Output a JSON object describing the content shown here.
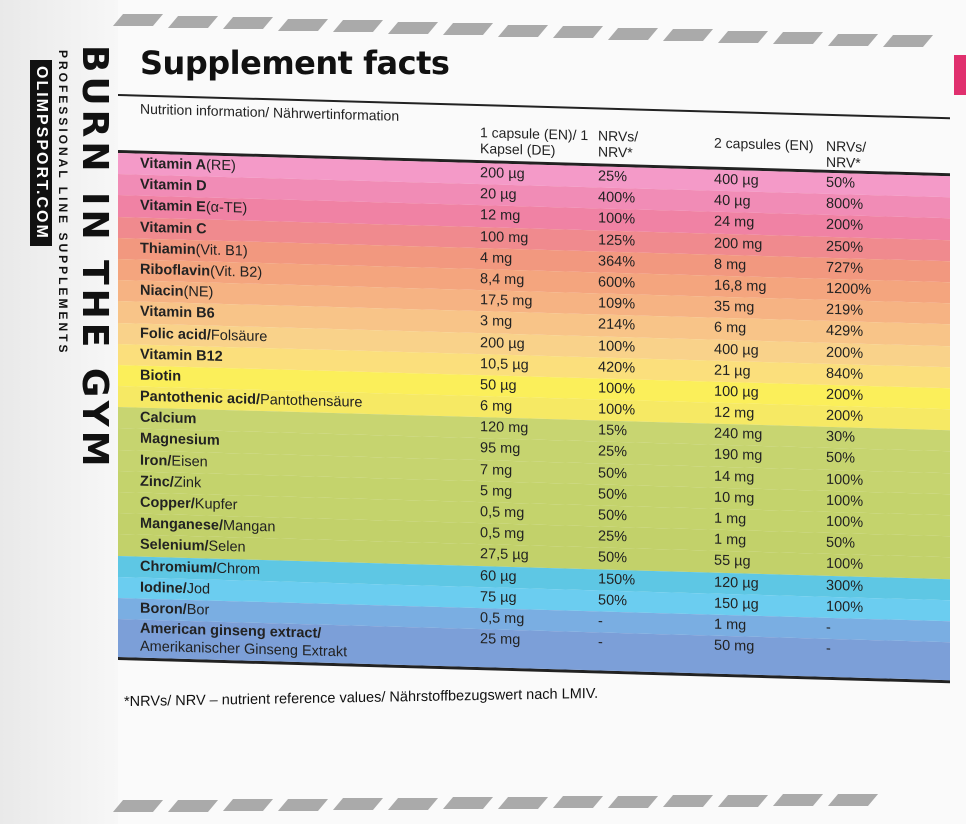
{
  "side_panel": {
    "brand": "BURN IN THE GYM",
    "tagline": "PROFESSIONAL LINE SUPPLEMENTS",
    "website": "OLIMPSPORT.COM"
  },
  "title": "Supplement facts",
  "header": {
    "col0": "Nutrition information/ Nährwertinformation",
    "col1": "1 capsule (EN)/ 1 Kapsel (DE)",
    "col2": "NRVs/ NRV*",
    "col3": "2 capsules (EN)",
    "col4": "NRVs/ NRV*"
  },
  "rows": [
    {
      "name": "Vitamin A",
      "sub": " (RE)",
      "v1": "200 µg",
      "n1": "25%",
      "v2": "400 µg",
      "n2": "50%",
      "color": "#f49ac8"
    },
    {
      "name": "Vitamin D",
      "sub": "",
      "v1": "20 µg",
      "n1": "400%",
      "v2": "40 µg",
      "n2": "800%",
      "color": "#f18cb6"
    },
    {
      "name": "Vitamin E",
      "sub": " (α-TE)",
      "v1": "12 mg",
      "n1": "100%",
      "v2": "24 mg",
      "n2": "200%",
      "color": "#f082a4"
    },
    {
      "name": "Vitamin C",
      "sub": "",
      "v1": "100 mg",
      "n1": "125%",
      "v2": "200 mg",
      "n2": "250%",
      "color": "#f08a8e"
    },
    {
      "name": "Thiamin",
      "sub": " (Vit. B1)",
      "v1": "4 mg",
      "n1": "364%",
      "v2": "8 mg",
      "n2": "727%",
      "color": "#f2987f"
    },
    {
      "name": "Riboflavin",
      "sub": " (Vit. B2)",
      "v1": "8,4 mg",
      "n1": "600%",
      "v2": "16,8 mg",
      "n2": "1200%",
      "color": "#f4a57e"
    },
    {
      "name": "Niacin",
      "sub": " (NE)",
      "v1": "17,5 mg",
      "n1": "109%",
      "v2": "35 mg",
      "n2": "219%",
      "color": "#f6b383"
    },
    {
      "name": "Vitamin B6",
      "sub": "",
      "v1": "3 mg",
      "n1": "214%",
      "v2": "6 mg",
      "n2": "429%",
      "color": "#f8c488"
    },
    {
      "name": "Folic acid/",
      "sub": " Folsäure",
      "v1": "200 µg",
      "n1": "100%",
      "v2": "400 µg",
      "n2": "200%",
      "color": "#f9d28a"
    },
    {
      "name": "Vitamin B12",
      "sub": "",
      "v1": "10,5 µg",
      "n1": "420%",
      "v2": "21 µg",
      "n2": "840%",
      "color": "#fbdf7c"
    },
    {
      "name": "Biotin",
      "sub": "",
      "v1": "50 µg",
      "n1": "100%",
      "v2": "100 µg",
      "n2": "200%",
      "color": "#fbef5a"
    },
    {
      "name": "Pantothenic acid/",
      "sub": " Pantothensäure",
      "v1": "6 mg",
      "n1": "100%",
      "v2": "12 mg",
      "n2": "200%",
      "color": "#f6e964"
    },
    {
      "name": "Calcium",
      "sub": "",
      "v1": "120 mg",
      "n1": "15%",
      "v2": "240 mg",
      "n2": "30%",
      "color": "#c8d571"
    },
    {
      "name": "Magnesium",
      "sub": "",
      "v1": "95 mg",
      "n1": "25%",
      "v2": "190 mg",
      "n2": "50%",
      "color": "#c6d46f"
    },
    {
      "name": "Iron/",
      "sub": " Eisen",
      "v1": "7 mg",
      "n1": "50%",
      "v2": "14 mg",
      "n2": "100%",
      "color": "#c6d46f"
    },
    {
      "name": "Zinc/",
      "sub": " Zink",
      "v1": "5 mg",
      "n1": "50%",
      "v2": "10 mg",
      "n2": "100%",
      "color": "#c4d36c"
    },
    {
      "name": "Copper/",
      "sub": " Kupfer",
      "v1": "0,5 mg",
      "n1": "50%",
      "v2": "1 mg",
      "n2": "100%",
      "color": "#c4d36c"
    },
    {
      "name": "Manganese/",
      "sub": " Mangan",
      "v1": "0,5 mg",
      "n1": "25%",
      "v2": "1 mg",
      "n2": "50%",
      "color": "#c2d16a"
    },
    {
      "name": "Selenium/",
      "sub": " Selen",
      "v1": "27,5 µg",
      "n1": "50%",
      "v2": "55 µg",
      "n2": "100%",
      "color": "#c2d16a"
    },
    {
      "name": "Chromium/",
      "sub": " Chrom",
      "v1": "60 µg",
      "n1": "150%",
      "v2": "120 µg",
      "n2": "300%",
      "color": "#5ec7e4"
    },
    {
      "name": "Iodine/",
      "sub": " Jod",
      "v1": "75 µg",
      "n1": "50%",
      "v2": "150 µg",
      "n2": "100%",
      "color": "#6bcdf0"
    },
    {
      "name": "Boron/",
      "sub": " Bor",
      "v1": "0,5 mg",
      "n1": "-",
      "v2": "1 mg",
      "n2": "-",
      "color": "#7aaee2"
    },
    {
      "name": "American ginseng extract/",
      "sub": "Amerikanischer Ginseng Extrakt",
      "v1": "25 mg",
      "n1": "-",
      "v2": "50 mg",
      "n2": "-",
      "color": "#7c9fd8",
      "tall": true
    }
  ],
  "footnote": "*NRVs/ NRV – nutrient reference values/ Nährstoffbezugswert nach LMIV."
}
